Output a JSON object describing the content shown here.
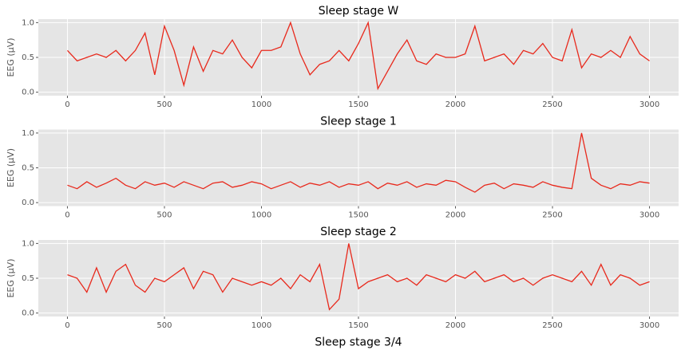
{
  "chart_data": [
    {
      "type": "line",
      "title": "Sleep stage W",
      "y_label": "EEG (µV)",
      "color": "#e8291c",
      "grid": true,
      "xlim": [
        -150,
        3150
      ],
      "ylim": [
        -0.05,
        1.05
      ],
      "xticks": [
        0,
        500,
        1000,
        1500,
        2000,
        2500,
        3000
      ],
      "yticks": [
        {
          "value": 0,
          "label": "0.0"
        },
        {
          "value": 0.5,
          "label": "0.5"
        },
        {
          "value": 1,
          "label": "1.0"
        }
      ],
      "x": [
        0,
        50,
        100,
        150,
        200,
        250,
        300,
        350,
        400,
        450,
        500,
        550,
        600,
        650,
        700,
        750,
        800,
        850,
        900,
        950,
        1000,
        1050,
        1100,
        1150,
        1200,
        1250,
        1300,
        1350,
        1400,
        1450,
        1500,
        1550,
        1600,
        1650,
        1700,
        1750,
        1800,
        1850,
        1900,
        1950,
        2000,
        2050,
        2100,
        2150,
        2200,
        2250,
        2300,
        2350,
        2400,
        2450,
        2500,
        2550,
        2600,
        2650,
        2700,
        2750,
        2800,
        2850,
        2900,
        2950,
        3000
      ],
      "values": [
        0.6,
        0.45,
        0.5,
        0.55,
        0.5,
        0.6,
        0.45,
        0.6,
        0.85,
        0.25,
        0.95,
        0.6,
        0.1,
        0.65,
        0.3,
        0.6,
        0.55,
        0.75,
        0.5,
        0.35,
        0.6,
        0.6,
        0.65,
        1.0,
        0.55,
        0.25,
        0.4,
        0.45,
        0.6,
        0.45,
        0.7,
        1.0,
        0.05,
        0.3,
        0.55,
        0.75,
        0.45,
        0.4,
        0.55,
        0.5,
        0.5,
        0.55,
        0.95,
        0.45,
        0.5,
        0.55,
        0.4,
        0.6,
        0.55,
        0.7,
        0.5,
        0.45,
        0.9,
        0.35,
        0.55,
        0.5,
        0.6,
        0.5,
        0.8,
        0.55,
        0.45
      ]
    },
    {
      "type": "line",
      "title": "Sleep stage 1",
      "y_label": "EEG (µV)",
      "color": "#e8291c",
      "grid": true,
      "xlim": [
        -150,
        3150
      ],
      "ylim": [
        -0.05,
        1.05
      ],
      "xticks": [
        0,
        500,
        1000,
        1500,
        2000,
        2500,
        3000
      ],
      "yticks": [
        {
          "value": 0,
          "label": "0.0"
        },
        {
          "value": 0.5,
          "label": "0.5"
        },
        {
          "value": 1,
          "label": "1.0"
        }
      ],
      "x": [
        0,
        50,
        100,
        150,
        200,
        250,
        300,
        350,
        400,
        450,
        500,
        550,
        600,
        650,
        700,
        750,
        800,
        850,
        900,
        950,
        1000,
        1050,
        1100,
        1150,
        1200,
        1250,
        1300,
        1350,
        1400,
        1450,
        1500,
        1550,
        1600,
        1650,
        1700,
        1750,
        1800,
        1850,
        1900,
        1950,
        2000,
        2050,
        2100,
        2150,
        2200,
        2250,
        2300,
        2350,
        2400,
        2450,
        2500,
        2550,
        2600,
        2650,
        2700,
        2750,
        2800,
        2850,
        2900,
        2950,
        3000
      ],
      "values": [
        0.25,
        0.2,
        0.3,
        0.22,
        0.28,
        0.35,
        0.25,
        0.2,
        0.3,
        0.25,
        0.28,
        0.22,
        0.3,
        0.25,
        0.2,
        0.28,
        0.3,
        0.22,
        0.25,
        0.3,
        0.27,
        0.2,
        0.25,
        0.3,
        0.22,
        0.28,
        0.25,
        0.3,
        0.22,
        0.27,
        0.25,
        0.3,
        0.2,
        0.28,
        0.25,
        0.3,
        0.22,
        0.27,
        0.25,
        0.32,
        0.3,
        0.22,
        0.15,
        0.25,
        0.28,
        0.2,
        0.27,
        0.25,
        0.22,
        0.3,
        0.25,
        0.22,
        0.2,
        1.0,
        0.35,
        0.25,
        0.2,
        0.27,
        0.25,
        0.3,
        0.28
      ]
    },
    {
      "type": "line",
      "title": "Sleep stage 2",
      "y_label": "EEG (µV)",
      "color": "#e8291c",
      "grid": true,
      "xlim": [
        -150,
        3150
      ],
      "ylim": [
        -0.05,
        1.05
      ],
      "xticks": [
        0,
        500,
        1000,
        1500,
        2000,
        2500,
        3000
      ],
      "yticks": [
        {
          "value": 0,
          "label": "0.0"
        },
        {
          "value": 0.5,
          "label": "0.5"
        },
        {
          "value": 1,
          "label": "1.0"
        }
      ],
      "x": [
        0,
        50,
        100,
        150,
        200,
        250,
        300,
        350,
        400,
        450,
        500,
        550,
        600,
        650,
        700,
        750,
        800,
        850,
        900,
        950,
        1000,
        1050,
        1100,
        1150,
        1200,
        1250,
        1300,
        1350,
        1400,
        1450,
        1500,
        1550,
        1600,
        1650,
        1700,
        1750,
        1800,
        1850,
        1900,
        1950,
        2000,
        2050,
        2100,
        2150,
        2200,
        2250,
        2300,
        2350,
        2400,
        2450,
        2500,
        2550,
        2600,
        2650,
        2700,
        2750,
        2800,
        2850,
        2900,
        2950,
        3000
      ],
      "values": [
        0.55,
        0.5,
        0.3,
        0.65,
        0.3,
        0.6,
        0.7,
        0.4,
        0.3,
        0.5,
        0.45,
        0.55,
        0.65,
        0.35,
        0.6,
        0.55,
        0.3,
        0.5,
        0.45,
        0.4,
        0.45,
        0.4,
        0.5,
        0.35,
        0.55,
        0.45,
        0.7,
        0.05,
        0.2,
        1.0,
        0.35,
        0.45,
        0.5,
        0.55,
        0.45,
        0.5,
        0.4,
        0.55,
        0.5,
        0.45,
        0.55,
        0.5,
        0.6,
        0.45,
        0.5,
        0.55,
        0.45,
        0.5,
        0.4,
        0.5,
        0.55,
        0.5,
        0.45,
        0.6,
        0.4,
        0.7,
        0.4,
        0.55,
        0.5,
        0.4,
        0.45
      ]
    },
    {
      "type": "line",
      "title": "Sleep stage 3/4"
    }
  ]
}
